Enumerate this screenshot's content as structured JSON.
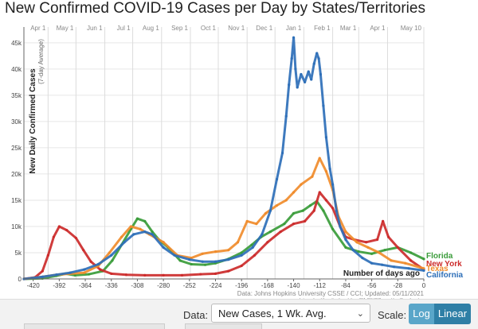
{
  "title": "New Confirmed COVID-19 Cases per Day by States/Territories",
  "controls": {
    "data_label": "Data:",
    "data_value": "New Cases, 1 Wk. Avg.",
    "scale_label": "Scale:",
    "scale_options": [
      "Log",
      "Linear"
    ],
    "scale_selected": "Linear"
  },
  "chart_data": {
    "type": "line",
    "ylabel": "New Daily Confirmed Cases",
    "ylabel_sub": "(7-day Average)",
    "xlabel": "Number of days ago",
    "xlim": [
      -430,
      0
    ],
    "ylim": [
      0,
      48000
    ],
    "x_ticks": [
      -420,
      -392,
      -364,
      -336,
      -308,
      -280,
      -252,
      -224,
      -196,
      -168,
      -140,
      -112,
      -84,
      -56,
      -28,
      0
    ],
    "y_ticks": [
      {
        "value": 0,
        "label": "0"
      },
      {
        "value": 5000,
        "label": "5k"
      },
      {
        "value": 10000,
        "label": "10k"
      },
      {
        "value": 15000,
        "label": "15k"
      },
      {
        "value": 20000,
        "label": "20k"
      },
      {
        "value": 25000,
        "label": "25k"
      },
      {
        "value": 30000,
        "label": "30k"
      },
      {
        "value": 35000,
        "label": "35k"
      },
      {
        "value": 40000,
        "label": "40k"
      },
      {
        "value": 45000,
        "label": "45k"
      }
    ],
    "month_markers": [
      {
        "label": "Apr 1",
        "x": -404
      },
      {
        "label": "May 1",
        "x": -374
      },
      {
        "label": "Jun 1",
        "x": -343
      },
      {
        "label": "Jul 1",
        "x": -313
      },
      {
        "label": "Aug 1",
        "x": -282
      },
      {
        "label": "Sep 1",
        "x": -251
      },
      {
        "label": "Oct 1",
        "x": -221
      },
      {
        "label": "Nov 1",
        "x": -190
      },
      {
        "label": "Dec 1",
        "x": -160
      },
      {
        "label": "Jan 1",
        "x": -129
      },
      {
        "label": "Feb 1",
        "x": -98
      },
      {
        "label": "Mar 1",
        "x": -70
      },
      {
        "label": "Apr 1",
        "x": -39
      },
      {
        "label": "May 10",
        "x": 0
      }
    ],
    "source": "Data: Johns Hopkins University CSSE / CCI; Updated: 05/11/2021",
    "credit": "Interactive Visualization: https://91-DIVOC.com/ by @profwade_",
    "series": [
      {
        "name": "Florida",
        "color": "#3a9c3a",
        "points": [
          [
            -430,
            0
          ],
          [
            -410,
            100
          ],
          [
            -395,
            600
          ],
          [
            -385,
            1000
          ],
          [
            -375,
            700
          ],
          [
            -360,
            900
          ],
          [
            -345,
            1500
          ],
          [
            -335,
            3500
          ],
          [
            -325,
            6500
          ],
          [
            -315,
            9500
          ],
          [
            -308,
            11500
          ],
          [
            -300,
            11000
          ],
          [
            -292,
            9000
          ],
          [
            -285,
            7500
          ],
          [
            -275,
            6000
          ],
          [
            -262,
            3500
          ],
          [
            -250,
            2800
          ],
          [
            -235,
            2700
          ],
          [
            -224,
            3000
          ],
          [
            -210,
            3800
          ],
          [
            -196,
            5000
          ],
          [
            -185,
            6500
          ],
          [
            -175,
            8000
          ],
          [
            -165,
            9000
          ],
          [
            -150,
            10500
          ],
          [
            -140,
            12500
          ],
          [
            -130,
            13000
          ],
          [
            -122,
            14000
          ],
          [
            -115,
            14800
          ],
          [
            -108,
            13000
          ],
          [
            -98,
            9500
          ],
          [
            -84,
            6000
          ],
          [
            -70,
            5200
          ],
          [
            -56,
            4800
          ],
          [
            -42,
            5500
          ],
          [
            -28,
            6000
          ],
          [
            -14,
            5000
          ],
          [
            0,
            3800
          ]
        ]
      },
      {
        "name": "New York",
        "color": "#cc2b2b",
        "points": [
          [
            -430,
            0
          ],
          [
            -418,
            300
          ],
          [
            -410,
            1500
          ],
          [
            -404,
            4500
          ],
          [
            -398,
            8000
          ],
          [
            -392,
            10000
          ],
          [
            -384,
            9300
          ],
          [
            -374,
            7800
          ],
          [
            -366,
            5500
          ],
          [
            -358,
            3300
          ],
          [
            -348,
            1800
          ],
          [
            -336,
            1000
          ],
          [
            -320,
            800
          ],
          [
            -300,
            700
          ],
          [
            -280,
            700
          ],
          [
            -260,
            700
          ],
          [
            -240,
            900
          ],
          [
            -224,
            1000
          ],
          [
            -210,
            1500
          ],
          [
            -196,
            2500
          ],
          [
            -182,
            4500
          ],
          [
            -168,
            7000
          ],
          [
            -154,
            9000
          ],
          [
            -140,
            10500
          ],
          [
            -128,
            11000
          ],
          [
            -118,
            13000
          ],
          [
            -112,
            16500
          ],
          [
            -105,
            15000
          ],
          [
            -98,
            13500
          ],
          [
            -90,
            10000
          ],
          [
            -84,
            8000
          ],
          [
            -75,
            7500
          ],
          [
            -62,
            7000
          ],
          [
            -50,
            7500
          ],
          [
            -44,
            11000
          ],
          [
            -38,
            8000
          ],
          [
            -28,
            6000
          ],
          [
            -14,
            3500
          ],
          [
            0,
            1800
          ]
        ]
      },
      {
        "name": "Texas",
        "color": "#f08c2c",
        "points": [
          [
            -430,
            0
          ],
          [
            -410,
            400
          ],
          [
            -395,
            800
          ],
          [
            -380,
            1000
          ],
          [
            -365,
            1200
          ],
          [
            -350,
            2500
          ],
          [
            -338,
            5000
          ],
          [
            -325,
            8000
          ],
          [
            -315,
            10000
          ],
          [
            -305,
            9500
          ],
          [
            -295,
            8500
          ],
          [
            -280,
            7000
          ],
          [
            -265,
            4500
          ],
          [
            -250,
            4000
          ],
          [
            -238,
            4800
          ],
          [
            -224,
            5200
          ],
          [
            -210,
            5500
          ],
          [
            -200,
            7000
          ],
          [
            -190,
            11000
          ],
          [
            -180,
            10500
          ],
          [
            -170,
            12500
          ],
          [
            -158,
            14000
          ],
          [
            -148,
            15000
          ],
          [
            -140,
            16500
          ],
          [
            -132,
            18000
          ],
          [
            -120,
            19500
          ],
          [
            -112,
            23000
          ],
          [
            -105,
            20500
          ],
          [
            -98,
            17000
          ],
          [
            -92,
            12000
          ],
          [
            -84,
            9000
          ],
          [
            -72,
            7000
          ],
          [
            -60,
            6000
          ],
          [
            -48,
            5000
          ],
          [
            -35,
            3500
          ],
          [
            -20,
            3000
          ],
          [
            0,
            2000
          ]
        ]
      },
      {
        "name": "California",
        "color": "#2e6fb8",
        "points": [
          [
            -430,
            0
          ],
          [
            -410,
            400
          ],
          [
            -395,
            800
          ],
          [
            -380,
            1200
          ],
          [
            -365,
            1800
          ],
          [
            -350,
            2800
          ],
          [
            -336,
            4500
          ],
          [
            -322,
            7000
          ],
          [
            -312,
            8500
          ],
          [
            -300,
            9000
          ],
          [
            -292,
            8500
          ],
          [
            -280,
            6000
          ],
          [
            -268,
            4500
          ],
          [
            -252,
            3700
          ],
          [
            -238,
            3300
          ],
          [
            -224,
            3300
          ],
          [
            -210,
            3700
          ],
          [
            -196,
            4500
          ],
          [
            -184,
            6000
          ],
          [
            -174,
            8500
          ],
          [
            -165,
            13000
          ],
          [
            -158,
            19000
          ],
          [
            -152,
            24000
          ],
          [
            -148,
            31000
          ],
          [
            -145,
            37000
          ],
          [
            -142,
            42000
          ],
          [
            -140,
            46000
          ],
          [
            -138,
            40000
          ],
          [
            -136,
            36500
          ],
          [
            -132,
            39000
          ],
          [
            -128,
            37500
          ],
          [
            -124,
            39500
          ],
          [
            -121,
            38000
          ],
          [
            -118,
            41000
          ],
          [
            -115,
            43000
          ],
          [
            -113,
            42000
          ],
          [
            -111,
            39000
          ],
          [
            -108,
            33000
          ],
          [
            -105,
            27000
          ],
          [
            -101,
            21000
          ],
          [
            -98,
            18000
          ],
          [
            -94,
            13000
          ],
          [
            -90,
            10000
          ],
          [
            -84,
            7500
          ],
          [
            -76,
            5500
          ],
          [
            -66,
            4000
          ],
          [
            -56,
            3000
          ],
          [
            -45,
            2700
          ],
          [
            -32,
            2300
          ],
          [
            -16,
            2000
          ],
          [
            0,
            1600
          ]
        ]
      }
    ]
  }
}
